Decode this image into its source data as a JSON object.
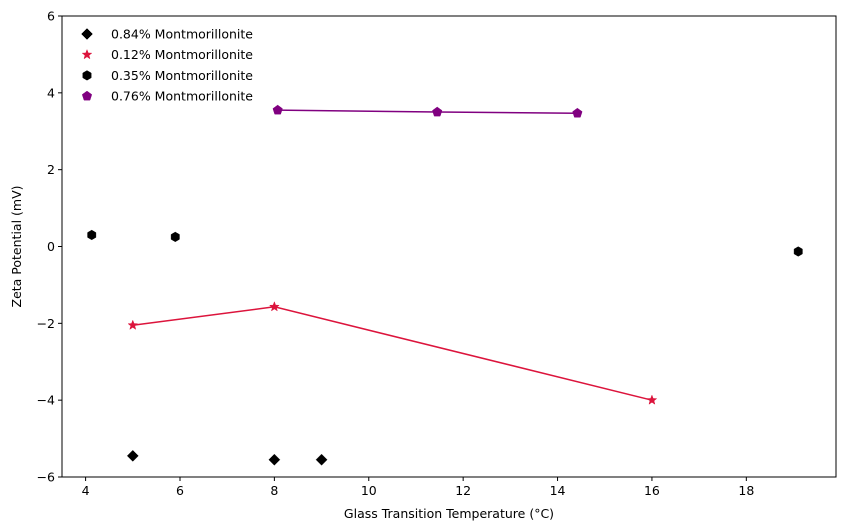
{
  "chart_data": {
    "type": "scatter",
    "xlabel": "Glass Transition Temperature (°C)",
    "ylabel": "Zeta Potential (mV)",
    "xlim": [
      3.5,
      19.9
    ],
    "ylim": [
      -6,
      6
    ],
    "xticks": [
      4,
      6,
      8,
      10,
      12,
      14,
      16,
      18
    ],
    "yticks": [
      -6,
      -4,
      -2,
      0,
      2,
      4,
      6
    ],
    "grid": false,
    "legend_position": "top-left",
    "series": [
      {
        "name": "0.84% Montmorillonite",
        "marker": "diamond",
        "color": "#000000",
        "line": false,
        "points": [
          [
            5.0,
            -5.45
          ],
          [
            8.0,
            -5.55
          ],
          [
            9.0,
            -5.55
          ]
        ]
      },
      {
        "name": "0.12% Montmorillonite",
        "marker": "star",
        "color": "#dc143c",
        "line": true,
        "points": [
          [
            5.0,
            -2.05
          ],
          [
            8.0,
            -1.57
          ],
          [
            16.0,
            -4.0
          ]
        ]
      },
      {
        "name": "0.35% Montmorillonite",
        "marker": "hexagon",
        "color": "#000000",
        "line": false,
        "points": [
          [
            4.13,
            0.3
          ],
          [
            5.9,
            0.25
          ],
          [
            19.1,
            -0.13
          ]
        ]
      },
      {
        "name": "0.76% Montmorillonite",
        "marker": "pentagon",
        "color": "#800080",
        "line": true,
        "points": [
          [
            8.07,
            3.55
          ],
          [
            11.45,
            3.5
          ],
          [
            14.42,
            3.47
          ]
        ]
      }
    ]
  }
}
